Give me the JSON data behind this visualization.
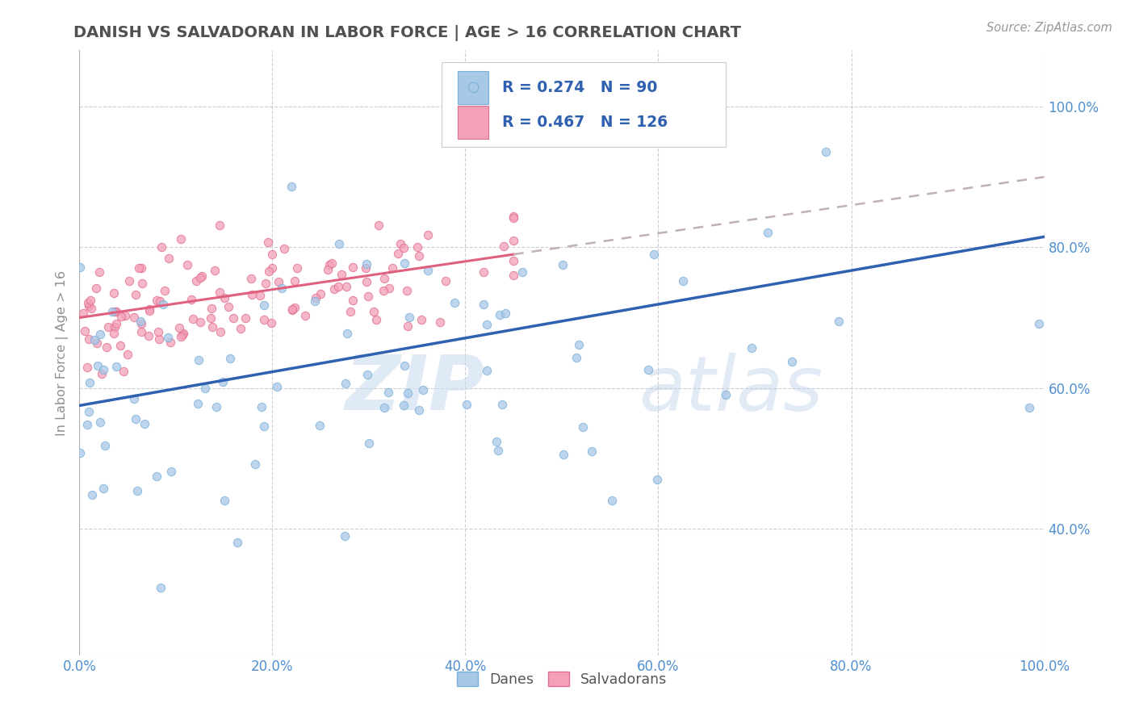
{
  "title": "DANISH VS SALVADORAN IN LABOR FORCE | AGE > 16 CORRELATION CHART",
  "source_text": "Source: ZipAtlas.com",
  "ylabel": "In Labor Force | Age > 16",
  "xlim": [
    0.0,
    1.0
  ],
  "ylim": [
    0.22,
    1.08
  ],
  "x_ticks": [
    0.0,
    0.2,
    0.4,
    0.6,
    0.8,
    1.0
  ],
  "x_tick_labels": [
    "0.0%",
    "20.0%",
    "40.0%",
    "60.0%",
    "80.0%",
    "100.0%"
  ],
  "y_ticks": [
    0.4,
    0.6,
    0.8,
    1.0
  ],
  "y_tick_labels": [
    "40.0%",
    "60.0%",
    "80.0%",
    "100.0%"
  ],
  "danes_color": "#a8c8e8",
  "danes_edge_color": "#7ab0d8",
  "salvadorans_color": "#f4a0b8",
  "salvadorans_edge_color": "#e07090",
  "danes_R": 0.274,
  "danes_N": 90,
  "salvadorans_R": 0.467,
  "salvadorans_N": 126,
  "danes_line_color": "#3060b0",
  "salvadorans_line_solid_color": "#e06080",
  "salvadorans_line_dashed_color": "#c0b0b8",
  "grid_color": "#c8c8d0",
  "background_color": "#ffffff",
  "watermark_zip": "ZIP",
  "watermark_atlas": "atlas",
  "title_color": "#505050",
  "title_fontsize": 14,
  "tick_label_color": "#5090d0",
  "legend_text_color": "#3060b0",
  "marker_size": 55
}
